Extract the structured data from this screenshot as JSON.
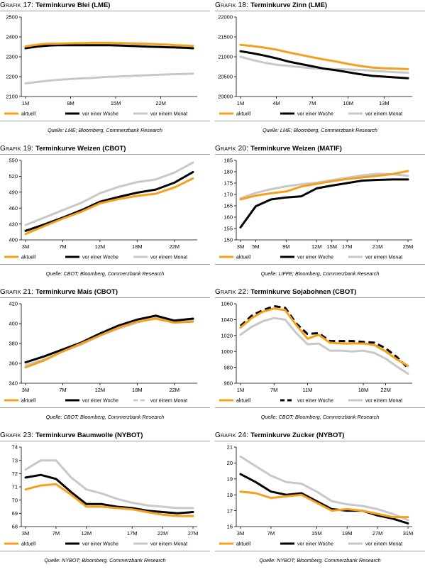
{
  "series_names": [
    "aktuell",
    "vor einer Woche",
    "vor einem Monat"
  ],
  "colors": {
    "aktuell": "#f5a01a",
    "woche": "#000000",
    "monat": "#c8c8c8",
    "rule": "#a0a0a0"
  },
  "chart_data": [
    {
      "type": "line",
      "prefix": "Grafik 17:",
      "title": "Terminkurve Blei (LME)",
      "source": "Quelle: LME; Bloomberg, Commerzbank Research",
      "x": [
        "1M",
        "2M",
        "3M",
        "4M",
        "5M",
        "6M",
        "7M",
        "8M",
        "9M",
        "10M",
        "11M",
        "12M",
        "13M",
        "14M",
        "15M",
        "16M",
        "17M",
        "18M",
        "19M",
        "20M",
        "21M",
        "22M",
        "23M",
        "24M",
        "25M",
        "26M",
        "27M"
      ],
      "xticks": [
        "1M",
        "8M",
        "15M",
        "22M"
      ],
      "yticks": [
        2100,
        2200,
        2300,
        2400,
        2500
      ],
      "ylim": [
        2100,
        2500
      ],
      "legend_style": "solid",
      "series": [
        {
          "name": "aktuell",
          "values": [
            2352,
            2357,
            2361,
            2365,
            2366,
            2366,
            2367,
            2368,
            2369,
            2369,
            2370,
            2370,
            2370,
            2370,
            2369,
            2369,
            2368,
            2367,
            2366,
            2365,
            2364,
            2362,
            2361,
            2359,
            2357,
            2356,
            2354
          ]
        },
        {
          "name": "vor einer Woche",
          "values": [
            2343,
            2348,
            2352,
            2355,
            2357,
            2358,
            2358,
            2358,
            2358,
            2358,
            2358,
            2358,
            2358,
            2358,
            2357,
            2356,
            2355,
            2354,
            2352,
            2351,
            2350,
            2349,
            2348,
            2347,
            2346,
            2345,
            2343
          ]
        },
        {
          "name": "vor einem Monat",
          "values": [
            2166,
            2170,
            2174,
            2178,
            2181,
            2184,
            2186,
            2188,
            2190,
            2192,
            2193,
            2195,
            2197,
            2199,
            2200,
            2202,
            2203,
            2205,
            2206,
            2207,
            2209,
            2210,
            2211,
            2212,
            2213,
            2214,
            2215
          ]
        }
      ]
    },
    {
      "type": "line",
      "prefix": "Grafik 18:",
      "title": "Terminkurve Zinn (LME)",
      "source": "Quelle: LME; Bloomberg, Commerzbank Research",
      "x": [
        "1M",
        "2M",
        "3M",
        "4M",
        "5M",
        "6M",
        "7M",
        "8M",
        "9M",
        "10M",
        "11M",
        "12M",
        "13M",
        "14M",
        "15M"
      ],
      "xticks": [
        "1M",
        "4M",
        "7M",
        "10M",
        "13M"
      ],
      "yticks": [
        20000,
        20500,
        21000,
        21500,
        22000
      ],
      "ylim": [
        20000,
        22000
      ],
      "legend_style": "solid",
      "series": [
        {
          "name": "aktuell",
          "values": [
            21300,
            21270,
            21230,
            21180,
            21110,
            21050,
            20990,
            20930,
            20880,
            20820,
            20770,
            20730,
            20710,
            20700,
            20690
          ]
        },
        {
          "name": "vor einer Woche",
          "values": [
            21140,
            21090,
            21030,
            20960,
            20880,
            20820,
            20760,
            20700,
            20660,
            20610,
            20560,
            20520,
            20500,
            20480,
            20460
          ]
        },
        {
          "name": "vor einem Monat",
          "values": [
            21000,
            20920,
            20850,
            20800,
            20770,
            20740,
            20710,
            20700,
            20690,
            20680,
            20670,
            20650,
            20630,
            20610,
            20600
          ]
        }
      ]
    },
    {
      "type": "line",
      "prefix": "Grafik 19:",
      "title": "Terminkurve Weizen (CBOT)",
      "source": "Quelle: CBOT; Bloomberg, Commerzbank Research",
      "x": [
        "3M",
        "5M",
        "7M",
        "9M",
        "12M",
        "15M",
        "18M",
        "20M",
        "22M",
        "24M"
      ],
      "xticks": [
        "3M",
        "7M",
        "12M",
        "18M",
        "22M"
      ],
      "yticks": [
        400,
        430,
        460,
        490,
        520,
        550
      ],
      "ylim": [
        400,
        550
      ],
      "legend_style": "solid",
      "series": [
        {
          "name": "aktuell",
          "values": [
            411,
            426,
            440,
            453,
            469,
            477,
            483,
            487,
            499,
            516
          ]
        },
        {
          "name": "vor einer Woche",
          "values": [
            417,
            429,
            442,
            456,
            472,
            481,
            489,
            495,
            508,
            528
          ]
        },
        {
          "name": "vor einem Monat",
          "values": [
            428,
            442,
            456,
            470,
            488,
            500,
            509,
            514,
            527,
            546
          ]
        }
      ]
    },
    {
      "type": "line",
      "prefix": "Grafik 20:",
      "title": "Terminkurve Weizen (MATIF)",
      "source": "Quelle: LIFFE; Bloomberg, Commerzbank Research",
      "x": [
        "3M",
        "5M",
        "7M",
        "9M",
        "11M",
        "12M",
        "15M",
        "17M",
        "19M",
        "21M",
        "23M",
        "25M"
      ],
      "xticks": [
        "3M",
        "5M",
        "9M",
        "12M",
        "15M",
        "17M",
        "21M",
        "25M"
      ],
      "yticks": [
        150,
        155,
        160,
        165,
        170,
        175,
        180,
        185
      ],
      "ylim": [
        150,
        185
      ],
      "legend_style": "solid",
      "series": [
        {
          "name": "aktuell",
          "values": [
            167.8,
            169.5,
            170.5,
            171.3,
            173.5,
            174.7,
            175.8,
            176.8,
            177.5,
            178.2,
            179.0,
            180.3
          ]
        },
        {
          "name": "vor einer Woche",
          "values": [
            155.5,
            164.8,
            167.8,
            168.7,
            169.2,
            172.7,
            173.9,
            175.0,
            176.1,
            176.4,
            176.6,
            176.6
          ]
        },
        {
          "name": "vor einem Monat",
          "values": [
            168.3,
            170.7,
            172.3,
            173.6,
            174.5,
            175.2,
            176.3,
            177.4,
            178.4,
            179.1,
            178.9,
            178.2
          ]
        }
      ]
    },
    {
      "type": "line",
      "prefix": "Grafik 21:",
      "title": "Terminkurve Mais (CBOT)",
      "source": "Quelle: CBOT; Bloomberg, Commerzbank Research",
      "x": [
        "3M",
        "5M",
        "7M",
        "9M",
        "12M",
        "15M",
        "18M",
        "20M",
        "22M",
        "24M"
      ],
      "xticks": [
        "3M",
        "7M",
        "12M",
        "18M",
        "22M"
      ],
      "yticks": [
        340,
        360,
        380,
        400,
        420
      ],
      "ylim": [
        340,
        420
      ],
      "legend_style": "dashed-monat",
      "series": [
        {
          "name": "aktuell",
          "values": [
            356,
            363,
            372,
            380,
            388,
            396,
            402,
            405,
            401,
            402
          ]
        },
        {
          "name": "vor einer Woche",
          "values": [
            361,
            367,
            374,
            381,
            390,
            398,
            404,
            408,
            403,
            405
          ]
        },
        {
          "name": "vor einem Monat",
          "values": [
            358,
            364,
            372,
            379,
            388,
            395,
            401,
            406,
            401,
            404
          ]
        }
      ]
    },
    {
      "type": "line",
      "prefix": "Grafik 22:",
      "title": "Terminkurve Sojabohnen (CBOT)",
      "source": "Quelle: CBOT; Bloomberg, Commerzbank Research",
      "x": [
        "1M",
        "3M",
        "5M",
        "7M",
        "8M",
        "10M",
        "11M",
        "12M",
        "14M",
        "15M",
        "16M",
        "18M",
        "20M",
        "22M",
        "23M",
        "24M"
      ],
      "xticks": [
        "1M",
        "7M",
        "11M",
        "18M",
        "22M"
      ],
      "yticks": [
        960,
        980,
        1000,
        1020,
        1040,
        1060
      ],
      "ylim": [
        960,
        1060
      ],
      "legend_style": "dashed-woche",
      "series": [
        {
          "name": "aktuell",
          "values": [
            1030,
            1042,
            1050,
            1054,
            1052,
            1033,
            1016,
            1021,
            1011,
            1010,
            1010,
            1010,
            1008,
            1000,
            990,
            982
          ]
        },
        {
          "name": "vor einer Woche",
          "values": [
            1032,
            1045,
            1052,
            1057,
            1055,
            1035,
            1022,
            1023,
            1013,
            1013,
            1013,
            1012,
            1011,
            1004,
            993,
            979
          ]
        },
        {
          "name": "vor einem Monat",
          "values": [
            1021,
            1031,
            1038,
            1042,
            1040,
            1023,
            1009,
            1010,
            1001,
            1001,
            1000,
            1001,
            998,
            991,
            981,
            972
          ]
        }
      ]
    },
    {
      "type": "line",
      "prefix": "Grafik 23:",
      "title": "Terminkurve Baumwolle (NYBOT)",
      "source": "Quelle: NYBOT; Bloomberg, Commerzbank Research",
      "x": [
        "3M",
        "5M",
        "7M",
        "10M",
        "12M",
        "13M",
        "15M",
        "17M",
        "19M",
        "22M",
        "24M",
        "27M"
      ],
      "xticks": [
        "3M",
        "7M",
        "12M",
        "17M",
        "22M",
        "27M"
      ],
      "yticks": [
        68,
        69,
        70,
        71,
        72,
        73,
        74
      ],
      "ylim": [
        68,
        74
      ],
      "legend_style": "solid",
      "series": [
        {
          "name": "aktuell",
          "values": [
            70.8,
            71.1,
            71.2,
            70.4,
            69.5,
            69.5,
            69.4,
            69.3,
            69.1,
            68.9,
            68.8,
            68.8
          ]
        },
        {
          "name": "vor einer Woche",
          "values": [
            71.7,
            71.9,
            71.6,
            70.6,
            69.7,
            69.7,
            69.5,
            69.4,
            69.2,
            69.1,
            69.0,
            69.1
          ]
        },
        {
          "name": "vor einem Monat",
          "values": [
            72.3,
            73.0,
            73.0,
            71.7,
            70.8,
            70.5,
            70.1,
            69.8,
            69.6,
            69.5,
            69.4,
            69.4
          ]
        }
      ]
    },
    {
      "type": "line",
      "prefix": "Grafik 24:",
      "title": "Terminkurve Zucker (NYBOT)",
      "source": "Quelle: NYBOT; Bloomberg, Commerzbank Research",
      "x": [
        "3M",
        "5M",
        "7M",
        "11M",
        "13M",
        "15M",
        "17M",
        "19M",
        "23M",
        "27M",
        "29M",
        "31M"
      ],
      "xticks": [
        "3M",
        "7M",
        "15M",
        "19M",
        "27M",
        "31M"
      ],
      "yticks": [
        16,
        17,
        18,
        19,
        20,
        21
      ],
      "ylim": [
        16,
        21
      ],
      "legend_style": "solid",
      "series": [
        {
          "name": "aktuell",
          "values": [
            18.2,
            18.1,
            17.8,
            17.9,
            18.0,
            17.5,
            17.0,
            17.1,
            17.0,
            16.8,
            16.6,
            16.6
          ]
        },
        {
          "name": "vor einer Woche",
          "values": [
            19.3,
            18.8,
            18.2,
            18.0,
            18.1,
            17.6,
            17.1,
            17.0,
            17.0,
            16.7,
            16.5,
            16.2
          ]
        },
        {
          "name": "vor einem Monat",
          "values": [
            20.4,
            19.8,
            19.2,
            18.8,
            18.7,
            18.2,
            17.6,
            17.4,
            17.3,
            17.1,
            16.8,
            16.4
          ]
        }
      ]
    }
  ]
}
